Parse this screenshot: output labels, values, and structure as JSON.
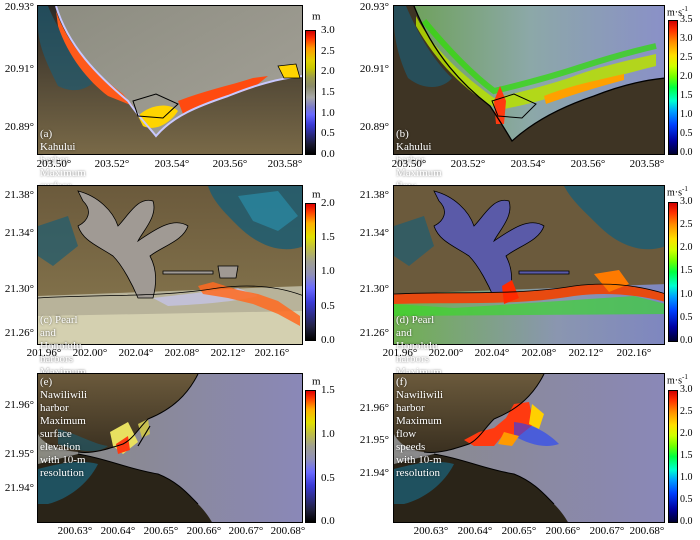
{
  "panels": [
    {
      "id": "a",
      "caption_line1": "(a) Kahului harbor",
      "caption_line2": "Maximum surface elevation with 10-m resolution",
      "caption_pos": "bottom-left",
      "y_ticks": [
        "20.93°",
        "20.91°",
        "20.89°"
      ],
      "x_ticks": [
        "203.50°",
        "203.52°",
        "203.54°",
        "203.56°",
        "203.58°"
      ],
      "colorbar_unit": "m",
      "colorbar_unit_sup": "",
      "colorbar_ticks": [
        "3.0",
        "2.5",
        "2.0",
        "1.5",
        "1.0",
        "0.5",
        "0.0"
      ],
      "colorbar_style": "elevation"
    },
    {
      "id": "b",
      "caption_line1": "(b) Kahului harbor",
      "caption_line2": "Maximum flow speeds with 10-m resolution",
      "caption_pos": "bottom-left",
      "y_ticks": [
        "20.93°",
        "20.91°",
        "20.89°"
      ],
      "x_ticks": [
        "203.50°",
        "203.52°",
        "203.54°",
        "203.56°",
        "203.58°"
      ],
      "colorbar_unit": "m·s",
      "colorbar_unit_sup": "-1",
      "colorbar_ticks": [
        "3.5",
        "3.0",
        "2.5",
        "2.0",
        "1.5",
        "1.0",
        "0.5",
        "0.0"
      ],
      "colorbar_style": "speed"
    },
    {
      "id": "c",
      "caption_line1": "(c) Pearl and Honolulu harbors",
      "caption_line2": "Maximum surface elevation with 10-m resolution",
      "caption_pos": "bottom-left",
      "y_ticks": [
        "21.38°",
        "21.34°",
        "21.30°",
        "21.26°"
      ],
      "x_ticks": [
        "201.96°",
        "202.00°",
        "202.04°",
        "202.08°",
        "202.12°",
        "202.16°"
      ],
      "colorbar_unit": "m",
      "colorbar_unit_sup": "",
      "colorbar_ticks": [
        "2.0",
        "1.5",
        "1.0",
        "0.5",
        "0.0"
      ],
      "colorbar_style": "elevation"
    },
    {
      "id": "d",
      "caption_line1": "(d) Pearl and Honolulu harbors",
      "caption_line2": "Maximum flow speed with 10-m resolution",
      "caption_pos": "bottom-left",
      "y_ticks": [
        "21.38°",
        "21.34°",
        "21.30°",
        "21.26°"
      ],
      "x_ticks": [
        "201.96°",
        "202.00°",
        "202.04°",
        "202.08°",
        "202.12°",
        "202.16°"
      ],
      "colorbar_unit": "m·s",
      "colorbar_unit_sup": "-1",
      "colorbar_ticks": [
        "3.0",
        "2.5",
        "2.0",
        "1.5",
        "1.0",
        "0.5",
        "0.0"
      ],
      "colorbar_style": "speed"
    },
    {
      "id": "e",
      "caption_line1": "(e) Nawiliwili harbor",
      "caption_line2": "Maximum surface elevation with 10-m resolution",
      "caption_pos": "top-left",
      "y_ticks": [
        "21.96°",
        "21.95°",
        "21.94°"
      ],
      "x_ticks": [
        "200.63°",
        "200.64°",
        "200.65°",
        "200.66°",
        "200.67°",
        "200.68°"
      ],
      "colorbar_unit": "m",
      "colorbar_unit_sup": "",
      "colorbar_ticks": [
        "1.5",
        "1.0",
        "0.5",
        "0.0"
      ],
      "colorbar_style": "elevation-small"
    },
    {
      "id": "f",
      "caption_line1": "(f) Nawiliwili harbor",
      "caption_line2": "Maximum flow speeds with 10-m resolution",
      "caption_pos": "top-left",
      "y_ticks": [
        "21.96°",
        "21.95°",
        "21.94°"
      ],
      "x_ticks": [
        "200.63°",
        "200.64°",
        "200.65°",
        "200.66°",
        "200.67°",
        "200.68°"
      ],
      "colorbar_unit": "m·s",
      "colorbar_unit_sup": "-1",
      "colorbar_ticks": [
        "3.0",
        "2.5",
        "2.0",
        "1.5",
        "1.0",
        "0.5",
        "0.0"
      ],
      "colorbar_style": "speed"
    }
  ]
}
